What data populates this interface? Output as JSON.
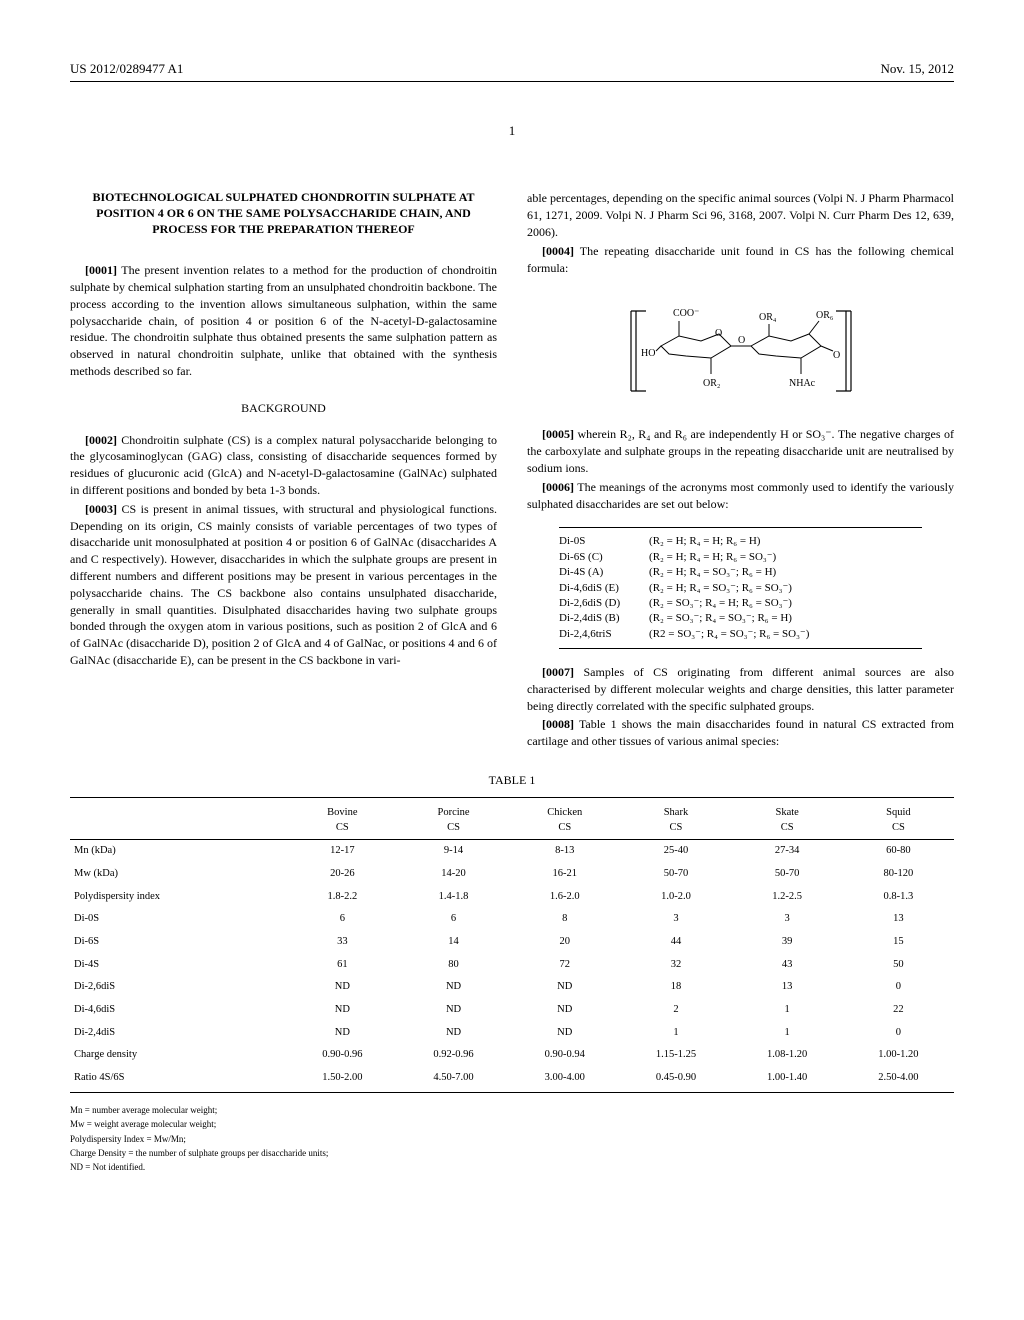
{
  "header": {
    "pubnum": "US 2012/0289477 A1",
    "date": "Nov. 15, 2012"
  },
  "pageNumber": "1",
  "title": "BIOTECHNOLOGICAL SULPHATED CHONDROITIN SULPHATE AT POSITION 4 OR 6 ON THE SAME POLYSACCHARIDE CHAIN, AND PROCESS FOR THE PREPARATION THEREOF",
  "paras": {
    "p1_num": "[0001]",
    "p1": "The present invention relates to a method for the production of chondroitin sulphate by chemical sulphation starting from an unsulphated chondroitin backbone. The process according to the invention allows simultaneous sulphation, within the same polysaccharide chain, of position 4 or position 6 of the N-acetyl-D-galactosamine residue. The chondroitin sulphate thus obtained presents the same sulphation pattern as observed in natural chondroitin sulphate, unlike that obtained with the synthesis methods described so far.",
    "background_heading": "BACKGROUND",
    "p2_num": "[0002]",
    "p2": "Chondroitin sulphate (CS) is a complex natural polysaccharide belonging to the glycosaminoglycan (GAG) class, consisting of disaccharide sequences formed by residues of glucuronic acid (GlcA) and N-acetyl-D-galactosamine (GalNAc) sulphated in different positions and bonded by beta 1-3 bonds.",
    "p3_num": "[0003]",
    "p3": "CS is present in animal tissues, with structural and physiological functions. Depending on its origin, CS mainly consists of variable percentages of two types of disaccharide unit monosulphated at position 4 or position 6 of GalNAc (disaccharides A and C respectively). However, disaccharides in which the sulphate groups are present in different numbers and different positions may be present in various percentages in the polysaccharide chains. The CS backbone also contains unsulphated disaccharide, generally in small quantities. Disulphated disaccharides having two sulphate groups bonded through the oxygen atom in various positions, such as position 2 of GlcA and 6 of GalNAc (disaccharide D), position 2 of GlcA and 4 of GalNac, or positions 4 and 6 of GalNAc (disaccharide E), can be present in the CS backbone in vari-",
    "p3b": "able percentages, depending on the specific animal sources (Volpi N. J Pharm Pharmacol 61, 1271, 2009. Volpi N. J Pharm Sci 96, 3168, 2007. Volpi N. Curr Pharm Des 12, 639, 2006).",
    "p4_num": "[0004]",
    "p4": "The repeating disaccharide unit found in CS has the following chemical formula:",
    "p5_num": "[0005]",
    "p5": "wherein R₂, R₄ and R₆ are independently H or SO₃⁻. The negative charges of the carboxylate and sulphate groups in the repeating disaccharide unit are neutralised by sodium ions.",
    "p6_num": "[0006]",
    "p6": "The meanings of the acronyms most commonly used to identify the variously sulphated disaccharides are set out below:",
    "p7_num": "[0007]",
    "p7": "Samples of CS originating from different animal sources are also characterised by different molecular weights and charge densities, this latter parameter being directly correlated with the specific sulphated groups.",
    "p8_num": "[0008]",
    "p8": "Table 1 shows the main disaccharides found in natural CS extracted from cartilage and other tissues of various animal species:"
  },
  "acronyms": {
    "rows": [
      {
        "label": "Di-0S",
        "def": "(R₂ = H; R₄ = H; R₆ = H)"
      },
      {
        "label": "Di-6S (C)",
        "def": "(R₂ = H; R₄ = H; R₆ = SO₃⁻)"
      },
      {
        "label": "Di-4S (A)",
        "def": "(R₂ = H; R₄ = SO₃⁻; R₆ = H)"
      },
      {
        "label": "Di-4,6diS (E)",
        "def": "(R₂ = H; R₄ = SO₃⁻; R₆ = SO₃⁻)"
      },
      {
        "label": "Di-2,6diS (D)",
        "def": "(R₂ = SO₃⁻; R₄ = H; R₆ = SO₃⁻)"
      },
      {
        "label": "Di-2,4diS (B)",
        "def": "(R₂ = SO₃⁻; R₄ = SO₃⁻; R₆ = H)"
      },
      {
        "label": "Di-2,4,6triS",
        "def": "(R2 = SO₃⁻; R₄ = SO₃⁻; R₆ = SO₃⁻)"
      }
    ]
  },
  "table1": {
    "caption": "TABLE 1",
    "columns": [
      "",
      "Bovine CS",
      "Porcine CS",
      "Chicken CS",
      "Shark CS",
      "Skate CS",
      "Squid CS"
    ],
    "rows": [
      [
        "Mn (kDa)",
        "12-17",
        "9-14",
        "8-13",
        "25-40",
        "27-34",
        "60-80"
      ],
      [
        "Mw (kDa)",
        "20-26",
        "14-20",
        "16-21",
        "50-70",
        "50-70",
        "80-120"
      ],
      [
        "Polydispersity index",
        "1.8-2.2",
        "1.4-1.8",
        "1.6-2.0",
        "1.0-2.0",
        "1.2-2.5",
        "0.8-1.3"
      ],
      [
        "Di-0S",
        "6",
        "6",
        "8",
        "3",
        "3",
        "13"
      ],
      [
        "Di-6S",
        "33",
        "14",
        "20",
        "44",
        "39",
        "15"
      ],
      [
        "Di-4S",
        "61",
        "80",
        "72",
        "32",
        "43",
        "50"
      ],
      [
        "Di-2,6diS",
        "ND",
        "ND",
        "ND",
        "18",
        "13",
        "0"
      ],
      [
        "Di-4,6diS",
        "ND",
        "ND",
        "ND",
        "2",
        "1",
        "22"
      ],
      [
        "Di-2,4diS",
        "ND",
        "ND",
        "ND",
        "1",
        "1",
        "0"
      ],
      [
        "Charge density",
        "0.90-0.96",
        "0.92-0.96",
        "0.90-0.94",
        "1.15-1.25",
        "1.08-1.20",
        "1.00-1.20"
      ],
      [
        "Ratio 4S/6S",
        "1.50-2.00",
        "4.50-7.00",
        "3.00-4.00",
        "0.45-0.90",
        "1.00-1.40",
        "2.50-4.00"
      ]
    ],
    "notes": [
      "Mn = number average molecular weight;",
      "Mw = weight average molecular weight;",
      "Polydispersity Index = Mw/Mn;",
      "Charge Density = the number of sulphate groups per disaccharide units;",
      "ND = Not identified."
    ]
  },
  "chem": {
    "labels": {
      "coo": "COO⁻",
      "ho": "HO",
      "or2": "OR₂",
      "or4": "OR₄",
      "or6": "OR₆",
      "nhac": "NHAc",
      "o1": "O",
      "o2": "O",
      "o3": "O"
    }
  }
}
